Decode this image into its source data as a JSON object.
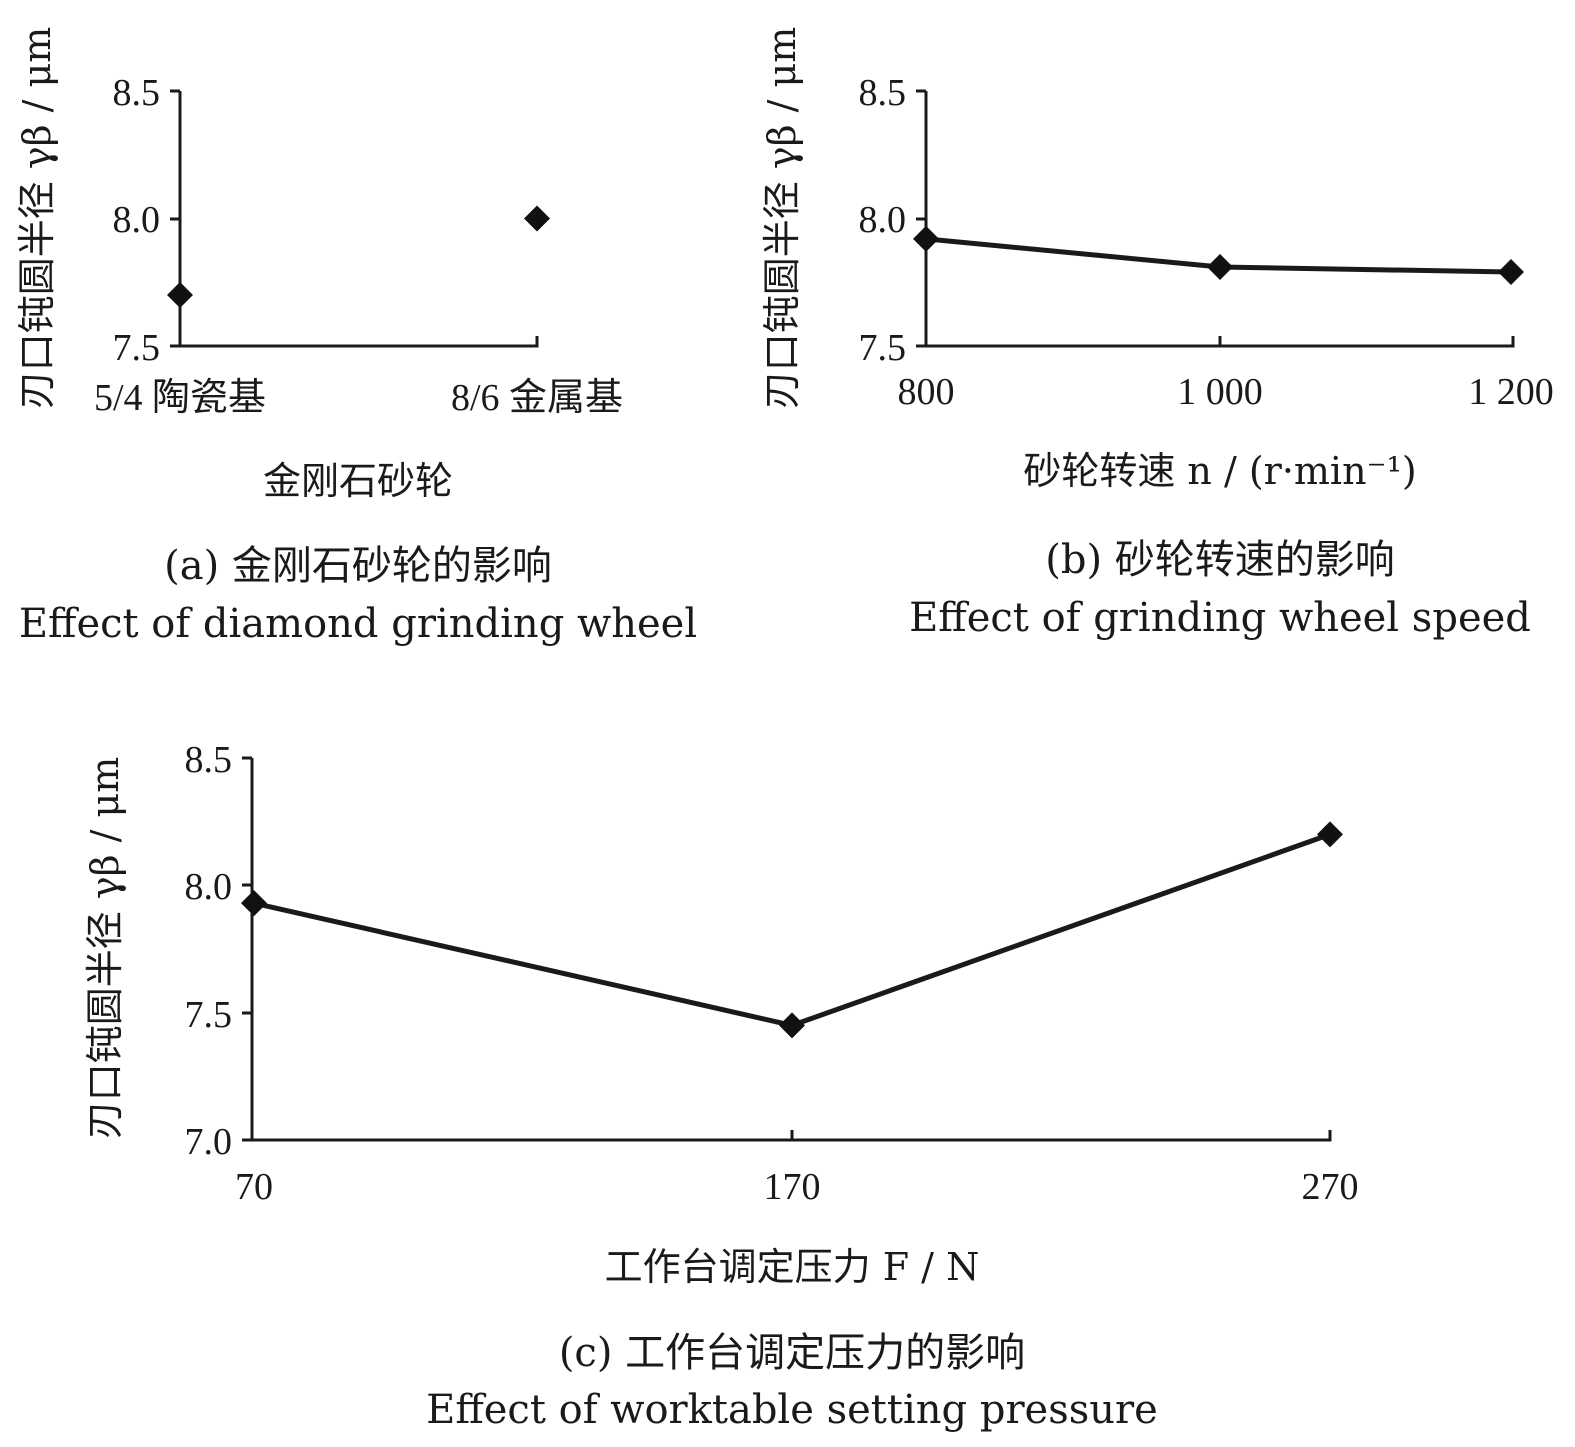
{
  "chart_data": [
    {
      "id": "a",
      "type": "scatter",
      "categories": [
        "5/4 陶瓷基",
        "8/6 金属基"
      ],
      "values": [
        7.7,
        8.0
      ],
      "ylabel": "刃口钝圆半径 γβ / μm",
      "xlabel": "金刚石砂轮",
      "yticks": [
        "7.5",
        "8.0",
        "8.5"
      ],
      "ylim": [
        7.5,
        8.5
      ],
      "caption_cn": "(a) 金刚石砂轮的影响",
      "caption_en": "Effect of diamond grinding wheel"
    },
    {
      "id": "b",
      "type": "line",
      "categories": [
        "800",
        "1 000",
        "1 200"
      ],
      "values": [
        7.92,
        7.81,
        7.79
      ],
      "ylabel": "刃口钝圆半径 γβ / μm",
      "xlabel": "砂轮转速 n / (r·min⁻¹)",
      "yticks": [
        "7.5",
        "8.0",
        "8.5"
      ],
      "ylim": [
        7.5,
        8.5
      ],
      "caption_cn": "(b) 砂轮转速的影响",
      "caption_en": "Effect of grinding wheel speed"
    },
    {
      "id": "c",
      "type": "line",
      "categories": [
        "70",
        "170",
        "270"
      ],
      "values": [
        7.93,
        7.45,
        8.2
      ],
      "ylabel": "刃口钝圆半径 γβ / μm",
      "xlabel": "工作台调定压力 F / N",
      "yticks": [
        "7.0",
        "7.5",
        "8.0",
        "8.5"
      ],
      "ylim": [
        7.0,
        8.5
      ],
      "caption_cn": "(c) 工作台调定压力的影响",
      "caption_en": "Effect of worktable setting pressure"
    }
  ]
}
